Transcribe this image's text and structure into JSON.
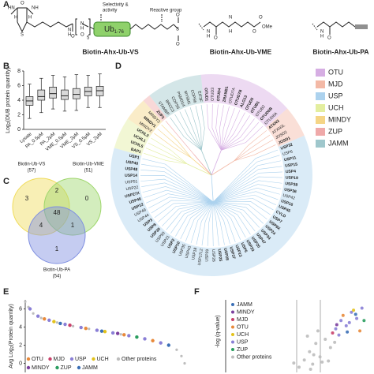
{
  "panels": {
    "a": {
      "label": "A",
      "selectivity": "Selectivity &",
      "activity": "activity",
      "reactive": "Reactive group",
      "ub": "Ub",
      "ub_sub": "1-76",
      "repeat": "5",
      "ome": "OMe",
      "atoms": [
        "HN",
        "NH",
        "H",
        "H",
        "S",
        "O",
        "N",
        "H",
        "O",
        "H",
        "N",
        "O",
        "S",
        "O",
        "O",
        "N",
        "H",
        "O",
        "H",
        "N",
        "O",
        "O",
        "N",
        "H",
        "O"
      ],
      "compounds": [
        "Biotin-Ahx-Ub-VS",
        "Biotin-Ahx-Ub-VME",
        "Biotin-Ahx-Ub-PA"
      ]
    },
    "c": {
      "label": "C",
      "sets": [
        {
          "name": "Biotin-Ub-VS",
          "total": "(57)",
          "color": "#f0dc5a"
        },
        {
          "name": "Biotin-Ub-VME",
          "total": "(51)",
          "color": "#9ed66c"
        },
        {
          "name": "Biotin-Ub-PA",
          "total": "(54)",
          "color": "#7f8fe0"
        }
      ],
      "regions": {
        "vs_only": 3,
        "vs_vme": 2,
        "vme_only": 0,
        "all": 48,
        "vs_pa": 4,
        "vme_pa": 1,
        "pa_only": 1
      }
    },
    "d": {
      "label": "D",
      "families": [
        {
          "name": "OTU",
          "color": "#d6aee3"
        },
        {
          "name": "MJD",
          "color": "#f3b9a6"
        },
        {
          "name": "USP",
          "color": "#acd2ee"
        },
        {
          "name": "UCH",
          "color": "#e3ee9f"
        },
        {
          "name": "MINDY",
          "color": "#f5d586"
        },
        {
          "name": "ZUP",
          "color": "#efa9a9"
        },
        {
          "name": "JAMM",
          "color": "#9fc7cc"
        }
      ],
      "leaves": [
        {
          "name": "OTUD1",
          "family": "OTU",
          "detected": true
        },
        {
          "name": "OTUD3",
          "family": "OTU",
          "detected": false
        },
        {
          "name": "OTUD4",
          "family": "OTU",
          "detected": true
        },
        {
          "name": "ZRANB1",
          "family": "OTU",
          "detected": true
        },
        {
          "name": "OTUD7A",
          "family": "OTU",
          "detected": false
        },
        {
          "name": "OTUD7B",
          "family": "OTU",
          "detected": true
        },
        {
          "name": "ALG13",
          "family": "OTU",
          "detected": true
        },
        {
          "name": "OTUD5",
          "family": "OTU",
          "detected": true
        },
        {
          "name": "OTUB1",
          "family": "OTU",
          "detected": true
        },
        {
          "name": "OTUB2",
          "family": "OTU",
          "detected": false
        },
        {
          "name": "OTUD6B",
          "family": "OTU",
          "detected": true
        },
        {
          "name": "OTUD6A",
          "family": "OTU",
          "detected": false
        },
        {
          "name": "ATXN3",
          "family": "MJD",
          "detected": true
        },
        {
          "name": "ATXN3L",
          "family": "MJD",
          "detected": false
        },
        {
          "name": "JOSD2",
          "family": "MJD",
          "detected": false
        },
        {
          "name": "JOSD1",
          "family": "MJD",
          "detected": true
        },
        {
          "name": "USP32",
          "family": "USP",
          "detected": true
        },
        {
          "name": "USP6",
          "family": "USP",
          "detected": false
        },
        {
          "name": "USP11",
          "family": "USP",
          "detected": true
        },
        {
          "name": "USP15",
          "family": "USP",
          "detected": true
        },
        {
          "name": "USP4",
          "family": "USP",
          "detected": true
        },
        {
          "name": "USP19",
          "family": "USP",
          "detected": true
        },
        {
          "name": "USP38",
          "family": "USP",
          "detected": true
        },
        {
          "name": "USP36",
          "family": "USP",
          "detected": true
        },
        {
          "name": "USP42",
          "family": "USP",
          "detected": false
        },
        {
          "name": "USP16",
          "family": "USP",
          "detected": true
        },
        {
          "name": "USP45",
          "family": "USP",
          "detected": true
        },
        {
          "name": "CYLD",
          "family": "USP",
          "detected": true
        },
        {
          "name": "USP7",
          "family": "USP",
          "detected": true
        },
        {
          "name": "USP9X",
          "family": "USP",
          "detected": true
        },
        {
          "name": "USP24",
          "family": "USP",
          "detected": true
        },
        {
          "name": "USP34",
          "family": "USP",
          "detected": true
        },
        {
          "name": "USP47",
          "family": "USP",
          "detected": true
        },
        {
          "name": "USP20",
          "family": "USP",
          "detected": true
        },
        {
          "name": "USP33",
          "family": "USP",
          "detected": true
        },
        {
          "name": "USP5",
          "family": "USP",
          "detected": true
        },
        {
          "name": "USP13",
          "family": "USP",
          "detected": true
        },
        {
          "name": "USP37",
          "family": "USP",
          "detected": true
        },
        {
          "name": "USP28",
          "family": "USP",
          "detected": true
        },
        {
          "name": "USP25",
          "family": "USP",
          "detected": true
        },
        {
          "name": "USP26",
          "family": "USP",
          "detected": false
        },
        {
          "name": "USP29",
          "family": "USP",
          "detected": false
        },
        {
          "name": "USP17L2",
          "family": "USP",
          "detected": false
        },
        {
          "name": "USP18",
          "family": "USP",
          "detected": false
        },
        {
          "name": "USP43",
          "family": "USP",
          "detected": false
        },
        {
          "name": "USP35",
          "family": "USP",
          "detected": false
        },
        {
          "name": "USP10",
          "family": "USP",
          "detected": true
        },
        {
          "name": "USP2",
          "family": "USP",
          "detected": true
        },
        {
          "name": "USP21",
          "family": "USP",
          "detected": false
        },
        {
          "name": "USP50",
          "family": "USP",
          "detected": false
        },
        {
          "name": "USP30",
          "family": "USP",
          "detected": true
        },
        {
          "name": "USP8",
          "family": "USP",
          "detected": true
        },
        {
          "name": "USP3",
          "family": "USP",
          "detected": true
        },
        {
          "name": "USP44",
          "family": "USP",
          "detected": false
        },
        {
          "name": "USP49",
          "family": "USP",
          "detected": false
        },
        {
          "name": "USP12",
          "family": "USP",
          "detected": true
        },
        {
          "name": "USP46",
          "family": "USP",
          "detected": true
        },
        {
          "name": "USP27X",
          "family": "USP",
          "detected": true
        },
        {
          "name": "USP22",
          "family": "USP",
          "detected": false
        },
        {
          "name": "USP51",
          "family": "USP",
          "detected": false
        },
        {
          "name": "USP14",
          "family": "USP",
          "detected": true
        },
        {
          "name": "USP48",
          "family": "USP",
          "detected": true
        },
        {
          "name": "USP40",
          "family": "USP",
          "detected": true
        },
        {
          "name": "USP1",
          "family": "USP",
          "detected": true
        },
        {
          "name": "BAP1",
          "family": "UCH",
          "detected": true
        },
        {
          "name": "UCHL5",
          "family": "UCH",
          "detected": true
        },
        {
          "name": "UCHL1",
          "family": "UCH",
          "detected": true
        },
        {
          "name": "UCHL3",
          "family": "UCH",
          "detected": true
        },
        {
          "name": "MINDY2",
          "family": "MINDY",
          "detected": false
        },
        {
          "name": "MINDY1",
          "family": "MINDY",
          "detected": true
        },
        {
          "name": "MINDY3",
          "family": "MINDY",
          "detected": false
        },
        {
          "name": "ZUP1",
          "family": "ZUP",
          "detected": true
        },
        {
          "name": "STAMBP",
          "family": "JAMM",
          "detected": false
        },
        {
          "name": "BRCC3",
          "family": "JAMM",
          "detected": false
        },
        {
          "name": "COPS5",
          "family": "JAMM",
          "detected": false
        },
        {
          "name": "PSMD14",
          "family": "JAMM",
          "detected": false
        },
        {
          "name": "MYSM1",
          "family": "JAMM",
          "detected": false
        },
        {
          "name": "COPS6",
          "family": "JAMM",
          "detected": false
        },
        {
          "name": "EIF3F",
          "family": "JAMM",
          "detected": false
        }
      ]
    }
  },
  "chart_data": [
    {
      "type": "box",
      "panel_label": "B",
      "ylabel": "Log",
      "ylabel_sub": "2",
      "ylabel_end": "(DUB protein quantity)",
      "categories": [
        "Lysate",
        "PA_0.5μM",
        "PA_2μM",
        "VME_0.5μM",
        "VME_2μM",
        "VS_0.5μM",
        "VS_2μM"
      ],
      "whislo": [
        1.5,
        2.3,
        2.8,
        2.5,
        2.6,
        3.0,
        3.0
      ],
      "q1": [
        3.3,
        4.0,
        4.3,
        4.1,
        4.2,
        4.6,
        4.6
      ],
      "median": [
        3.9,
        4.5,
        4.9,
        4.6,
        4.8,
        5.2,
        5.3
      ],
      "q3": [
        4.5,
        5.4,
        5.8,
        5.4,
        5.6,
        5.8,
        5.9
      ],
      "whishi": [
        6.2,
        7.0,
        7.4,
        7.2,
        7.5,
        7.4,
        7.6
      ],
      "color": "#d9d9d9",
      "ylim": [
        0,
        8
      ],
      "yticks": [
        0,
        2,
        4,
        6,
        8
      ]
    },
    {
      "type": "rank",
      "panel_label": "E",
      "ylabel": "Avg Log",
      "ylabel_sub": "2",
      "ylabel_end": "(Protein quantity)",
      "xlim": [
        0,
        100
      ],
      "ylim": [
        -1,
        7
      ],
      "yticks": [
        0,
        2,
        4,
        6
      ],
      "series": [
        {
          "name": "Other proteins",
          "color": "#bdbdbd",
          "x": [
            0,
            2,
            5,
            10,
            15,
            20,
            25,
            30,
            35,
            40,
            45,
            50,
            55,
            60,
            65,
            70,
            75,
            80,
            85,
            90,
            95,
            98,
            100
          ],
          "values": [
            6.8,
            6.2,
            5.5,
            5.0,
            4.75,
            4.5,
            4.3,
            4.1,
            3.95,
            3.8,
            3.65,
            3.5,
            3.35,
            3.2,
            3.05,
            2.9,
            2.7,
            2.5,
            2.25,
            2.0,
            1.5,
            0.8,
            0
          ]
        },
        {
          "name": "OTU",
          "color": "#e8893a",
          "x": [
            12,
            38,
            62,
            80
          ],
          "values": [
            4.9,
            3.85,
            3.15,
            2.5
          ]
        },
        {
          "name": "MJD",
          "color": "#c8406a",
          "x": [
            28
          ],
          "values": [
            4.2
          ]
        },
        {
          "name": "USP",
          "color": "#8a7fd6",
          "x": [
            3,
            8,
            15,
            25,
            35,
            45,
            55,
            65,
            75,
            85
          ],
          "values": [
            6.0,
            5.2,
            4.75,
            4.3,
            3.95,
            3.65,
            3.35,
            3.05,
            2.7,
            2.25
          ]
        },
        {
          "name": "UCH",
          "color": "#e3c21a",
          "x": [
            18,
            50
          ],
          "values": [
            4.6,
            3.5
          ]
        },
        {
          "name": "MINDY",
          "color": "#7b3f9e",
          "x": [
            58
          ],
          "values": [
            3.3
          ]
        },
        {
          "name": "ZUP",
          "color": "#2a9d5f",
          "x": [
            70
          ],
          "values": [
            2.9
          ]
        },
        {
          "name": "JAMM",
          "color": "#3b6fb6",
          "x": [
            22,
            48,
            90
          ],
          "values": [
            4.4,
            3.55,
            2.0
          ]
        }
      ]
    },
    {
      "type": "volcano",
      "panel_label": "F",
      "ylabel": "-log (q-value)",
      "xlim": [
        -8,
        6
      ],
      "ylim": [
        0,
        7
      ],
      "series": [
        {
          "name": "JAMM",
          "color": "#3b6fb6",
          "x": [
            3.6,
            4.4
          ],
          "values": [
            3.9,
            5.6
          ]
        },
        {
          "name": "MINDY",
          "color": "#7b3f9e",
          "x": [
            2.6
          ],
          "values": [
            4.6
          ]
        },
        {
          "name": "MJD",
          "color": "#c8406a",
          "x": [
            2.2
          ],
          "values": [
            3.8
          ]
        },
        {
          "name": "OTU",
          "color": "#e8893a",
          "x": [
            3.2,
            4.8
          ],
          "values": [
            5.5,
            4.0
          ]
        },
        {
          "name": "UCH",
          "color": "#e3c21a",
          "x": [
            4.2
          ],
          "values": [
            6.0
          ]
        },
        {
          "name": "USP",
          "color": "#8a7fd6",
          "x": [
            2.5,
            3.0,
            3.5,
            4.0,
            4.5,
            5.0,
            2.8,
            3.8
          ],
          "values": [
            4.2,
            5.0,
            4.5,
            5.8,
            5.2,
            6.2,
            3.6,
            4.8
          ]
        },
        {
          "name": "ZUP",
          "color": "#2a9d5f",
          "x": [
            5.2
          ],
          "values": [
            5.0
          ]
        },
        {
          "name": "Other proteins",
          "color": "#bdbdbd",
          "x": [
            -1.0,
            -0.5,
            0.0,
            0.3,
            0.6,
            1.0,
            1.5,
            2.0,
            -0.2,
            0.8,
            1.2,
            0.1,
            -1.5,
            0.4,
            1.8,
            2.4
          ],
          "values": [
            0.5,
            1.2,
            2.0,
            0.8,
            2.8,
            1.5,
            3.2,
            2.4,
            3.5,
            4.0,
            1.0,
            0.3,
            0.9,
            1.7,
            1.1,
            2.9
          ]
        }
      ]
    }
  ]
}
